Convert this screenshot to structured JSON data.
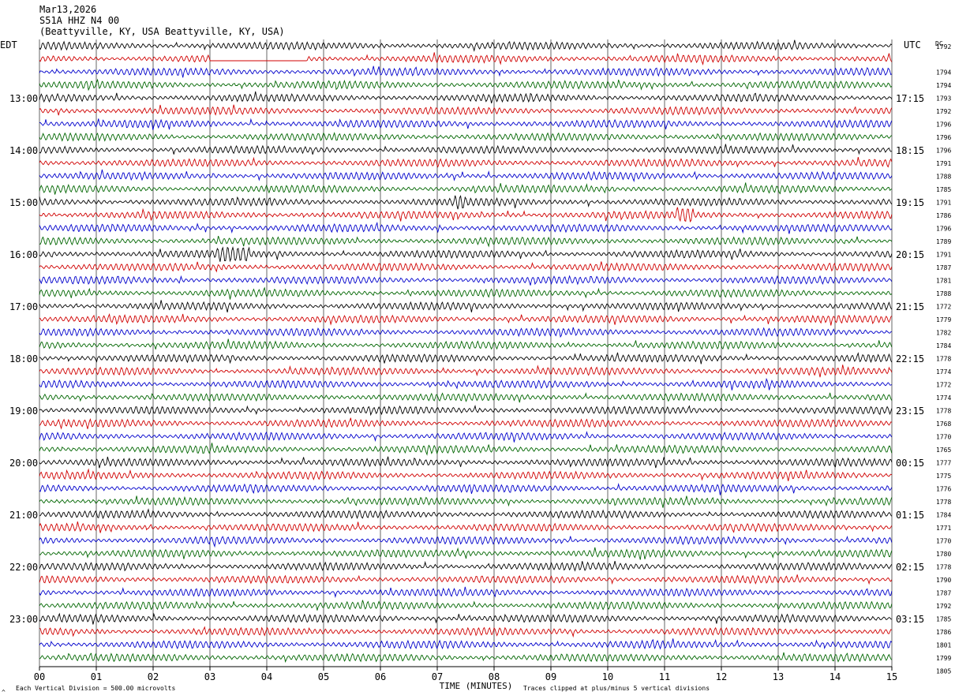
{
  "header": {
    "date": "Mar13,2026",
    "station": "S51A HHZ N4 00",
    "location": "(Beattyville, KY, USA Beattyville, KY, USA)"
  },
  "left_zone_label": "EDT",
  "right_zone_label": "UTC",
  "dc_label": "DC",
  "footer": {
    "scale_note": "Each Vertical Division =  500.00 microvolts",
    "clip_note": "Traces clipped at plus/minus 5 vertical divisions",
    "corner_mark": "^"
  },
  "colors": {
    "trace_cycle": [
      "#000000",
      "#d00000",
      "#0000cc",
      "#006600"
    ],
    "gridline": "#000000",
    "background": "#ffffff"
  },
  "chart_data": {
    "type": "helicorder",
    "xlabel": "TIME (MINUTES)",
    "xlim": [
      0,
      15
    ],
    "x_ticks": [
      "00",
      "01",
      "02",
      "03",
      "04",
      "05",
      "06",
      "07",
      "08",
      "09",
      "10",
      "11",
      "12",
      "13",
      "14",
      "15"
    ],
    "grid": "vertical lines at each minute",
    "minutes_per_trace": 15,
    "trace_count": 48,
    "left_hour_labels": [
      {
        "trace": 4,
        "label": "13:00"
      },
      {
        "trace": 8,
        "label": "14:00"
      },
      {
        "trace": 12,
        "label": "15:00"
      },
      {
        "trace": 16,
        "label": "16:00"
      },
      {
        "trace": 20,
        "label": "17:00"
      },
      {
        "trace": 24,
        "label": "18:00"
      },
      {
        "trace": 28,
        "label": "19:00"
      },
      {
        "trace": 32,
        "label": "20:00"
      },
      {
        "trace": 36,
        "label": "21:00"
      },
      {
        "trace": 40,
        "label": "22:00"
      },
      {
        "trace": 44,
        "label": "23:00"
      }
    ],
    "right_hour_labels": [
      {
        "trace": 4,
        "label": "17:15"
      },
      {
        "trace": 8,
        "label": "18:15"
      },
      {
        "trace": 12,
        "label": "19:15"
      },
      {
        "trace": 16,
        "label": "20:15"
      },
      {
        "trace": 20,
        "label": "21:15"
      },
      {
        "trace": 24,
        "label": "22:15"
      },
      {
        "trace": 28,
        "label": "23:15"
      },
      {
        "trace": 32,
        "label": "00:15"
      },
      {
        "trace": 36,
        "label": "01:15"
      },
      {
        "trace": 40,
        "label": "02:15"
      },
      {
        "trace": 44,
        "label": "03:15"
      }
    ],
    "dc_offsets": [
      "1792",
      "1794",
      "1794",
      "1793",
      "1792",
      "1796",
      "1796",
      "1796",
      "1791",
      "1788",
      "1785",
      "1791",
      "1786",
      "1796",
      "1789",
      "1791",
      "1787",
      "1781",
      "1788",
      "1772",
      "1779",
      "1782",
      "1784",
      "1778",
      "1774",
      "1772",
      "1774",
      "1778",
      "1768",
      "1770",
      "1765",
      "1777",
      "1775",
      "1776",
      "1778",
      "1784",
      "1771",
      "1770",
      "1780",
      "1778",
      "1790",
      "1787",
      "1792",
      "1785",
      "1786",
      "1801",
      "1799",
      "1805"
    ],
    "events": [
      {
        "trace": 16,
        "minute_start": 3.1,
        "minute_end": 3.7,
        "note": "burst"
      },
      {
        "trace": 12,
        "minute_start": 7.3,
        "minute_end": 7.5,
        "note": "spike"
      },
      {
        "trace": 13,
        "minute_start": 11.2,
        "minute_end": 11.5,
        "note": "spike"
      },
      {
        "trace": 1,
        "minute_start": 3.0,
        "minute_end": 4.7,
        "note": "flat gap"
      }
    ]
  }
}
